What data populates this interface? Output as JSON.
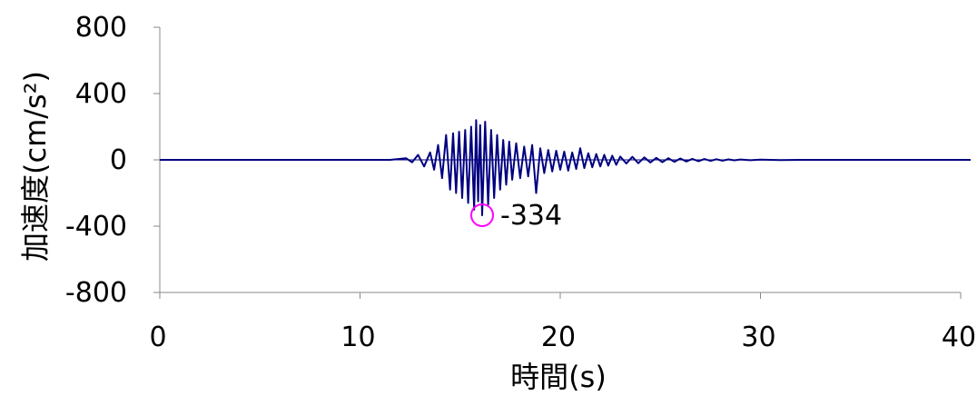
{
  "chart_data": {
    "type": "line",
    "xlabel": "時間(s)",
    "ylabel": "加速度(cm/s²)",
    "xlim": [
      0,
      40
    ],
    "ylim": [
      -800,
      800
    ],
    "x_ticks": [
      0,
      10,
      20,
      30,
      40
    ],
    "y_ticks": [
      800,
      400,
      0,
      -400,
      -800
    ],
    "x_tick_labels": [
      "0",
      "10",
      "20",
      "30",
      "40"
    ],
    "y_tick_labels": [
      "800",
      "400",
      "0",
      "-400",
      "-800"
    ],
    "grid": false,
    "series": [
      {
        "color": "#000080",
        "x": [
          0,
          11.5,
          12.3,
          12.6,
          12.9,
          13.2,
          13.5,
          13.7,
          13.9,
          14.1,
          14.3,
          14.5,
          14.65,
          14.8,
          14.95,
          15.1,
          15.25,
          15.4,
          15.55,
          15.7,
          15.8,
          15.9,
          16.0,
          16.1,
          16.25,
          16.4,
          16.55,
          16.7,
          16.85,
          17.0,
          17.15,
          17.3,
          17.45,
          17.6,
          17.8,
          18.0,
          18.2,
          18.4,
          18.6,
          18.8,
          19.0,
          19.2,
          19.4,
          19.6,
          19.8,
          20.0,
          20.2,
          20.4,
          20.6,
          20.8,
          21.0,
          21.2,
          21.4,
          21.6,
          21.8,
          22.0,
          22.2,
          22.4,
          22.6,
          22.8,
          23.0,
          23.3,
          23.6,
          23.9,
          24.2,
          24.5,
          24.8,
          25.1,
          25.4,
          25.7,
          26.0,
          26.3,
          26.6,
          26.9,
          27.2,
          27.5,
          27.8,
          28.1,
          28.4,
          28.7,
          29.0,
          29.5,
          30.0,
          31.0,
          32.0,
          40.5
        ],
        "y": [
          0,
          0,
          10,
          -15,
          30,
          -40,
          45,
          -60,
          90,
          -110,
          150,
          -180,
          160,
          -200,
          170,
          -230,
          180,
          -260,
          200,
          -300,
          240,
          -250,
          210,
          -334,
          230,
          -270,
          180,
          -230,
          150,
          -180,
          120,
          -150,
          110,
          -120,
          100,
          -110,
          80,
          -100,
          90,
          -200,
          70,
          -80,
          60,
          -70,
          55,
          -60,
          50,
          -65,
          45,
          -55,
          70,
          -50,
          40,
          -45,
          35,
          -40,
          30,
          -35,
          25,
          -30,
          20,
          -22,
          18,
          -20,
          15,
          -16,
          12,
          -14,
          10,
          -12,
          8,
          -10,
          6,
          -8,
          5,
          -6,
          4,
          -5,
          3,
          -3,
          2,
          -2,
          1,
          -1,
          0,
          0
        ]
      }
    ],
    "annotations": [
      {
        "x": 16.1,
        "y": -334,
        "text": "-334",
        "marker": "circle",
        "marker_color": "#ff00ff"
      }
    ]
  }
}
